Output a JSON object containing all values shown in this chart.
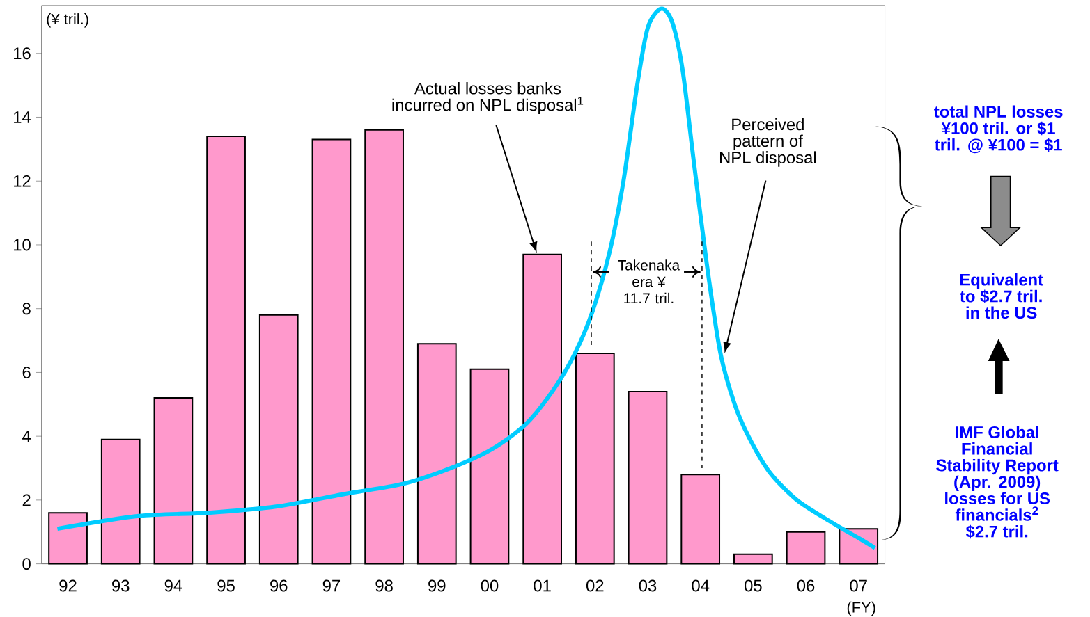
{
  "chart_data": {
    "type": "bar",
    "ylabel": "(¥ tril.)",
    "xlabel": "(FY)",
    "x": [
      1992,
      1993,
      1994,
      1995,
      1996,
      1997,
      1998,
      1999,
      2000,
      2001,
      2002,
      2003,
      2004,
      2005,
      2006,
      2007
    ],
    "xlim": [
      1991.5,
      2007.5
    ],
    "xticks": [
      {
        "value": 1992,
        "label": "92"
      },
      {
        "value": 1993,
        "label": "93"
      },
      {
        "value": 1994,
        "label": "94"
      },
      {
        "value": 1995,
        "label": "95"
      },
      {
        "value": 1996,
        "label": "96"
      },
      {
        "value": 1997,
        "label": "97"
      },
      {
        "value": 1998,
        "label": "98"
      },
      {
        "value": 1999,
        "label": "99"
      },
      {
        "value": 2000,
        "label": "00"
      },
      {
        "value": 2001,
        "label": "01"
      },
      {
        "value": 2002,
        "label": "02"
      },
      {
        "value": 2003,
        "label": "03"
      },
      {
        "value": 2004,
        "label": "04"
      },
      {
        "value": 2005,
        "label": "05"
      },
      {
        "value": 2006,
        "label": "06"
      },
      {
        "value": 2007,
        "label": "07"
      }
    ],
    "ylim": [
      0,
      17.5
    ],
    "yticks": [
      0,
      2,
      4,
      6,
      8,
      10,
      12,
      14,
      16
    ],
    "grid": false,
    "series": [
      {
        "name": "Actual losses banks incurred on NPL disposal$^{1}$",
        "color": "#ff99cc",
        "values": [
          1.6,
          3.9,
          5.2,
          13.4,
          7.8,
          13.3,
          13.6,
          6.9,
          6.1,
          9.7,
          6.6,
          5.4,
          2.8,
          0.3,
          1.0,
          1.1
        ]
      },
      {
        "name": "Perceived pattern of NPL disposal",
        "type": "line",
        "color": "#00ccff",
        "line_style": "solid",
        "x": [
          1991.8,
          1993.34,
          1994.66,
          1995.97,
          1997.28,
          1998.34,
          1999.26,
          2000.05,
          2000.7,
          2001.23,
          2001.62,
          2001.95,
          2002.28,
          2002.54,
          2002.8,
          2003.0,
          2003.25,
          2003.46,
          2003.66,
          2003.86,
          2004.12,
          2004.38,
          2004.65,
          2004.91,
          2005.3,
          2005.83,
          2006.49,
          2007.01,
          2007.31
        ],
        "values": [
          1.1,
          1.5,
          1.6,
          1.8,
          2.2,
          2.5,
          3.0,
          3.6,
          4.4,
          5.5,
          6.6,
          7.9,
          9.8,
          12.0,
          15.0,
          16.8,
          17.4,
          17.0,
          15.5,
          12.8,
          9.4,
          6.6,
          5.0,
          4.0,
          2.9,
          2.0,
          1.3,
          0.8,
          0.5
        ]
      }
    ],
    "ref_lines": [
      {
        "axis": "x",
        "value": 2001.93,
        "line_style": "dashed"
      },
      {
        "axis": "x",
        "value": 2004.03,
        "line_style": "dashed"
      }
    ],
    "annotations": [
      "Takenaka era ¥ 11.7 tril.",
      "total NPL losses ¥100 tril. or $1 tril. @ ¥100 = $1",
      "Equivalent to $2.7 tril. in the US",
      "IMF Global Financial Stability Report (Apr. 2009) losses for US financials$^{2}$ $2.7 tril."
    ]
  }
}
